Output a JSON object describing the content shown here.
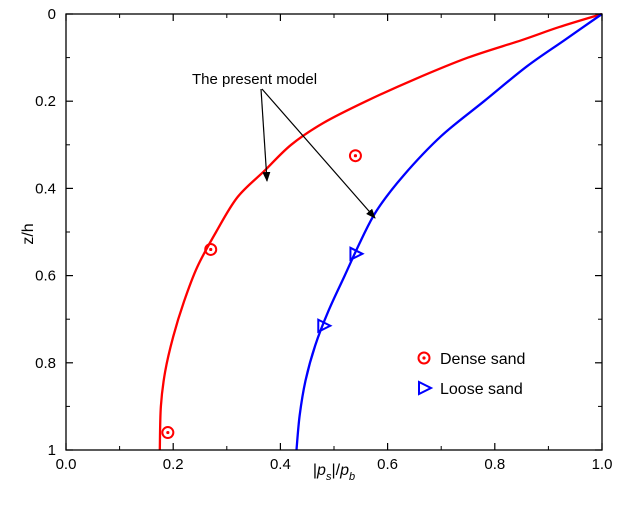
{
  "chart_data": {
    "type": "line",
    "title": "",
    "xlabel": "|p_s|/p_b",
    "ylabel": "z/h",
    "xlim": [
      0.0,
      1.0
    ],
    "ylim": [
      0,
      1
    ],
    "y_inverted": true,
    "x_ticks": [
      "0.0",
      "0.2",
      "0.4",
      "0.6",
      "0.8",
      "1.0"
    ],
    "y_ticks": [
      "0",
      "0.2",
      "0.4",
      "0.6",
      "0.8",
      "1"
    ],
    "grid": false,
    "legend_position": "bottom-right",
    "annotation": "The present model",
    "colors": {
      "dense": "#ff0000",
      "loose": "#0000ff"
    },
    "series": [
      {
        "kind": "line",
        "color": "#ff0000",
        "points": [
          [
            1.0,
            0.0
          ],
          [
            0.92,
            0.03
          ],
          [
            0.85,
            0.06
          ],
          [
            0.75,
            0.1
          ],
          [
            0.65,
            0.15
          ],
          [
            0.56,
            0.2
          ],
          [
            0.48,
            0.25
          ],
          [
            0.42,
            0.3
          ],
          [
            0.37,
            0.36
          ],
          [
            0.32,
            0.42
          ],
          [
            0.28,
            0.5
          ],
          [
            0.245,
            0.58
          ],
          [
            0.22,
            0.66
          ],
          [
            0.2,
            0.74
          ],
          [
            0.185,
            0.82
          ],
          [
            0.177,
            0.9
          ],
          [
            0.175,
            1.0
          ]
        ]
      },
      {
        "kind": "line",
        "color": "#0000ff",
        "points": [
          [
            1.0,
            0.0
          ],
          [
            0.93,
            0.06
          ],
          [
            0.86,
            0.12
          ],
          [
            0.78,
            0.2
          ],
          [
            0.7,
            0.28
          ],
          [
            0.63,
            0.37
          ],
          [
            0.58,
            0.45
          ],
          [
            0.55,
            0.52
          ],
          [
            0.52,
            0.6
          ],
          [
            0.49,
            0.68
          ],
          [
            0.465,
            0.76
          ],
          [
            0.447,
            0.84
          ],
          [
            0.436,
            0.92
          ],
          [
            0.43,
            1.0
          ]
        ]
      },
      {
        "kind": "scatter",
        "name": "Dense sand",
        "marker": "circle",
        "color": "#ff0000",
        "points": [
          [
            0.54,
            0.325
          ],
          [
            0.27,
            0.54
          ],
          [
            0.19,
            0.96
          ]
        ]
      },
      {
        "kind": "scatter",
        "name": "Loose sand",
        "marker": "triangle",
        "color": "#0000ff",
        "points": [
          [
            0.54,
            0.55
          ],
          [
            0.48,
            0.715
          ]
        ]
      }
    ]
  }
}
